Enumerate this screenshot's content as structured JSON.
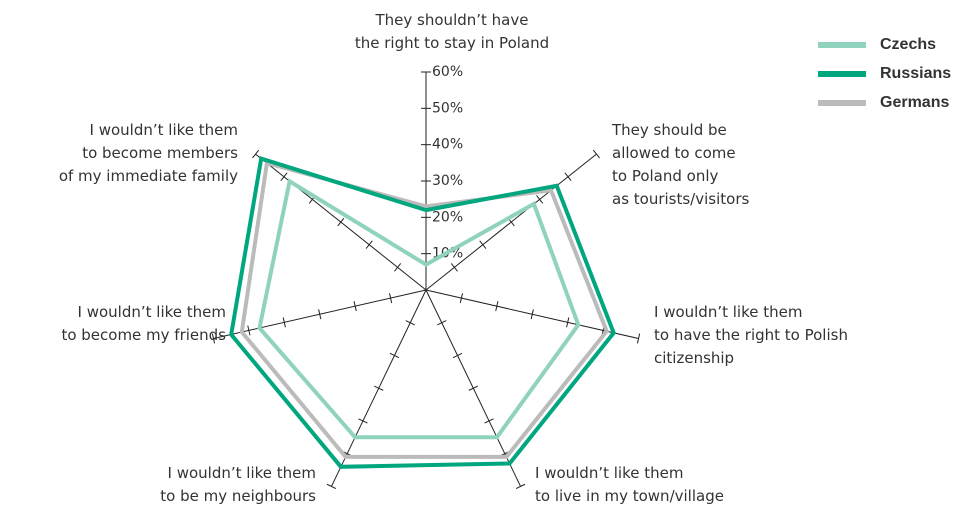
{
  "chart_data": {
    "type": "radar",
    "categories": [
      [
        "They shouldn’t have",
        "the right to stay in Poland"
      ],
      [
        "They should be",
        "allowed to come",
        "to Poland only",
        "as tourists/visitors"
      ],
      [
        "I wouldn’t like them",
        "to have the right to Polish",
        "citizenship"
      ],
      [
        "I wouldn’t like them",
        "to live in my town/village"
      ],
      [
        "I wouldn’t like them",
        "to be my neighbours"
      ],
      [
        "I wouldn’t like them",
        "to become my friends"
      ],
      [
        "I wouldn’t like them",
        "to become members",
        "of my immediate family"
      ]
    ],
    "series": [
      {
        "name": "Czechs",
        "color": "#8fd3bf",
        "values": [
          7,
          38,
          43,
          45,
          45,
          47,
          48
        ]
      },
      {
        "name": "Russians",
        "color": "#00a67e",
        "values": [
          22,
          46,
          53,
          53,
          54,
          55,
          58
        ]
      },
      {
        "name": "Germans",
        "color": "#bbbbbb",
        "values": [
          23,
          44,
          51,
          51,
          51,
          52,
          56
        ]
      }
    ],
    "ylim": [
      0,
      60
    ],
    "yticks": [
      {
        "value": 10,
        "label": "10%"
      },
      {
        "value": 20,
        "label": "20%"
      },
      {
        "value": 30,
        "label": "30%"
      },
      {
        "value": 40,
        "label": "40%"
      },
      {
        "value": 50,
        "label": "50%"
      },
      {
        "value": 60,
        "label": "60%"
      }
    ]
  }
}
